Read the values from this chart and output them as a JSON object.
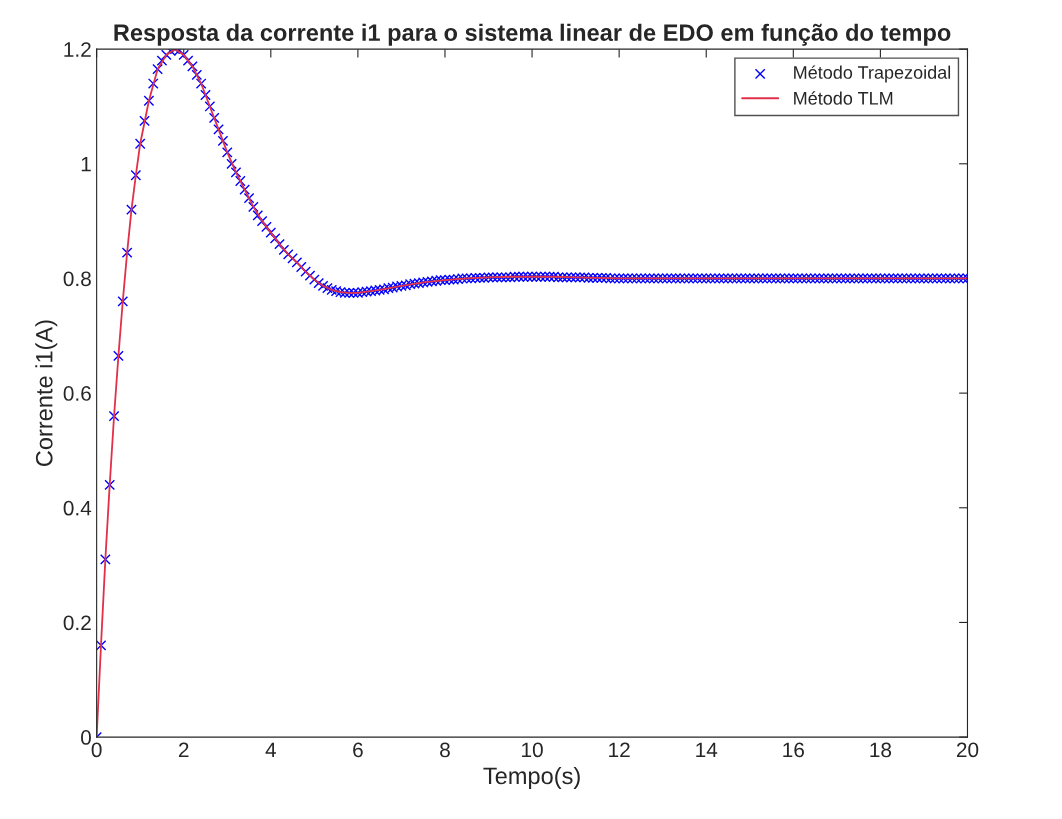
{
  "chart_data": {
    "type": "line",
    "title": "Resposta da corrente i1 para o sistema linear de EDO em função do tempo",
    "xlabel": "Tempo(s)",
    "ylabel": "Corrente i1(A)",
    "x": [
      0,
      0.1,
      0.2,
      0.3,
      0.4,
      0.5,
      0.6,
      0.7,
      0.8,
      0.9,
      1,
      1.1,
      1.2,
      1.3,
      1.4,
      1.5,
      1.6,
      1.7,
      1.8,
      1.9,
      2,
      2.1,
      2.2,
      2.3,
      2.4,
      2.5,
      2.6,
      2.7,
      2.8,
      2.9,
      3,
      3.1,
      3.2,
      3.3,
      3.4,
      3.5,
      3.6,
      3.7,
      3.8,
      3.9,
      4,
      4.1,
      4.2,
      4.3,
      4.4,
      4.5,
      4.6,
      4.7,
      4.8,
      4.9,
      5,
      5.1,
      5.2,
      5.3,
      5.4,
      5.5,
      5.6,
      5.7,
      5.8,
      5.9,
      6,
      6.1,
      6.2,
      6.3,
      6.4,
      6.5,
      6.6,
      6.7,
      6.8,
      6.9,
      7,
      7.1,
      7.2,
      7.3,
      7.4,
      7.5,
      7.6,
      7.7,
      7.8,
      7.9,
      8,
      8.1,
      8.2,
      8.3,
      8.4,
      8.5,
      8.6,
      8.7,
      8.8,
      8.9,
      9,
      9.1,
      9.2,
      9.3,
      9.4,
      9.5,
      9.6,
      9.7,
      9.8,
      9.9,
      10,
      10.1,
      10.2,
      10.3,
      10.4,
      10.5,
      10.6,
      10.7,
      10.8,
      10.9,
      11,
      11.1,
      11.2,
      11.3,
      11.4,
      11.5,
      11.6,
      11.7,
      11.8,
      11.9,
      12,
      12.1,
      12.2,
      12.3,
      12.4,
      12.5,
      12.6,
      12.7,
      12.8,
      12.9,
      13,
      13.1,
      13.2,
      13.3,
      13.4,
      13.5,
      13.6,
      13.7,
      13.8,
      13.9,
      14,
      14.1,
      14.2,
      14.3,
      14.4,
      14.5,
      14.6,
      14.7,
      14.8,
      14.9,
      15,
      15.1,
      15.2,
      15.3,
      15.4,
      15.5,
      15.6,
      15.7,
      15.8,
      15.9,
      16,
      16.1,
      16.2,
      16.3,
      16.4,
      16.5,
      16.6,
      16.7,
      16.8,
      16.9,
      17,
      17.1,
      17.2,
      17.3,
      17.4,
      17.5,
      17.6,
      17.7,
      17.8,
      17.9,
      18,
      18.1,
      18.2,
      18.3,
      18.4,
      18.5,
      18.6,
      18.7,
      18.8,
      18.9,
      19,
      19.1,
      19.2,
      19.3,
      19.4,
      19.5,
      19.6,
      19.7,
      19.8,
      19.9,
      20
    ],
    "series": [
      {
        "name": "Método Trapezoidal",
        "type": "scatter",
        "marker": "cross",
        "color": "#0000ff",
        "values": [
          0,
          0.16,
          0.31,
          0.44,
          0.56,
          0.665,
          0.76,
          0.845,
          0.92,
          0.98,
          1.035,
          1.075,
          1.11,
          1.14,
          1.165,
          1.18,
          1.19,
          1.197,
          1.2,
          1.198,
          1.19,
          1.18,
          1.17,
          1.155,
          1.14,
          1.12,
          1.1,
          1.08,
          1.06,
          1.04,
          1.02,
          1.0,
          0.985,
          0.97,
          0.955,
          0.94,
          0.925,
          0.91,
          0.9,
          0.89,
          0.88,
          0.87,
          0.86,
          0.85,
          0.842,
          0.835,
          0.828,
          0.82,
          0.812,
          0.805,
          0.798,
          0.792,
          0.787,
          0.783,
          0.78,
          0.778,
          0.776,
          0.775,
          0.775,
          0.775,
          0.775,
          0.776,
          0.777,
          0.778,
          0.779,
          0.78,
          0.781,
          0.783,
          0.784,
          0.786,
          0.787,
          0.788,
          0.79,
          0.791,
          0.792,
          0.793,
          0.794,
          0.795,
          0.796,
          0.797,
          0.797,
          0.798,
          0.798,
          0.799,
          0.8,
          0.8,
          0.8,
          0.801,
          0.801,
          0.801,
          0.802,
          0.802,
          0.802,
          0.802,
          0.802,
          0.802,
          0.803,
          0.803,
          0.803,
          0.803,
          0.803,
          0.803,
          0.803,
          0.803,
          0.803,
          0.803,
          0.802,
          0.802,
          0.802,
          0.802,
          0.802,
          0.802,
          0.802,
          0.801,
          0.801,
          0.801,
          0.801,
          0.801,
          0.8,
          0.8,
          0.8,
          0.8,
          0.8,
          0.8,
          0.8,
          0.8,
          0.8,
          0.8,
          0.8,
          0.8,
          0.8,
          0.8,
          0.8,
          0.8,
          0.8,
          0.8,
          0.8,
          0.8,
          0.8,
          0.8,
          0.8,
          0.8,
          0.8,
          0.8,
          0.8,
          0.8,
          0.8,
          0.8,
          0.8,
          0.8,
          0.8,
          0.8,
          0.8,
          0.8,
          0.8,
          0.8,
          0.8,
          0.8,
          0.8,
          0.8,
          0.8,
          0.8,
          0.8,
          0.8,
          0.8,
          0.8,
          0.8,
          0.8,
          0.8,
          0.8,
          0.8,
          0.8,
          0.8,
          0.8,
          0.8,
          0.8,
          0.8,
          0.8,
          0.8,
          0.8,
          0.8,
          0.8,
          0.8,
          0.8,
          0.8,
          0.8,
          0.8,
          0.8,
          0.8,
          0.8,
          0.8,
          0.8,
          0.8,
          0.8,
          0.8,
          0.8,
          0.8,
          0.8,
          0.8,
          0.8,
          0.8
        ]
      },
      {
        "name": "Método TLM",
        "line_style": "solid",
        "color": "#e0304a",
        "x": [
          0,
          0.1,
          0.2,
          0.3,
          0.4,
          0.5,
          0.6,
          0.7,
          0.8,
          0.9,
          1,
          1.2,
          1.4,
          1.6,
          1.8,
          2,
          2.2,
          2.4,
          2.6,
          2.8,
          3,
          3.2,
          3.4,
          3.6,
          3.8,
          4,
          4.2,
          4.4,
          4.6,
          4.8,
          5,
          5.2,
          5.4,
          5.6,
          5.8,
          6,
          6.5,
          7,
          7.5,
          8,
          8.5,
          9,
          9.5,
          10,
          10.5,
          11,
          11.5,
          12,
          14,
          16,
          18,
          20
        ],
        "values": [
          0,
          0.16,
          0.31,
          0.44,
          0.56,
          0.665,
          0.76,
          0.845,
          0.92,
          0.98,
          1.035,
          1.11,
          1.165,
          1.19,
          1.2,
          1.19,
          1.17,
          1.14,
          1.1,
          1.06,
          1.02,
          0.985,
          0.955,
          0.925,
          0.9,
          0.88,
          0.86,
          0.842,
          0.828,
          0.812,
          0.798,
          0.787,
          0.78,
          0.776,
          0.775,
          0.775,
          0.78,
          0.787,
          0.793,
          0.797,
          0.8,
          0.802,
          0.803,
          0.803,
          0.803,
          0.802,
          0.801,
          0.8,
          0.8,
          0.8,
          0.8,
          0.8
        ]
      }
    ],
    "xlim": [
      0,
      20
    ],
    "xticks": [
      0,
      2,
      4,
      6,
      8,
      10,
      12,
      14,
      16,
      18,
      20
    ],
    "ylim": [
      0,
      1.2
    ],
    "yticks": [
      0,
      0.2,
      0.4,
      0.6,
      0.8,
      1,
      1.2
    ],
    "grid": false,
    "legend": "top right"
  }
}
